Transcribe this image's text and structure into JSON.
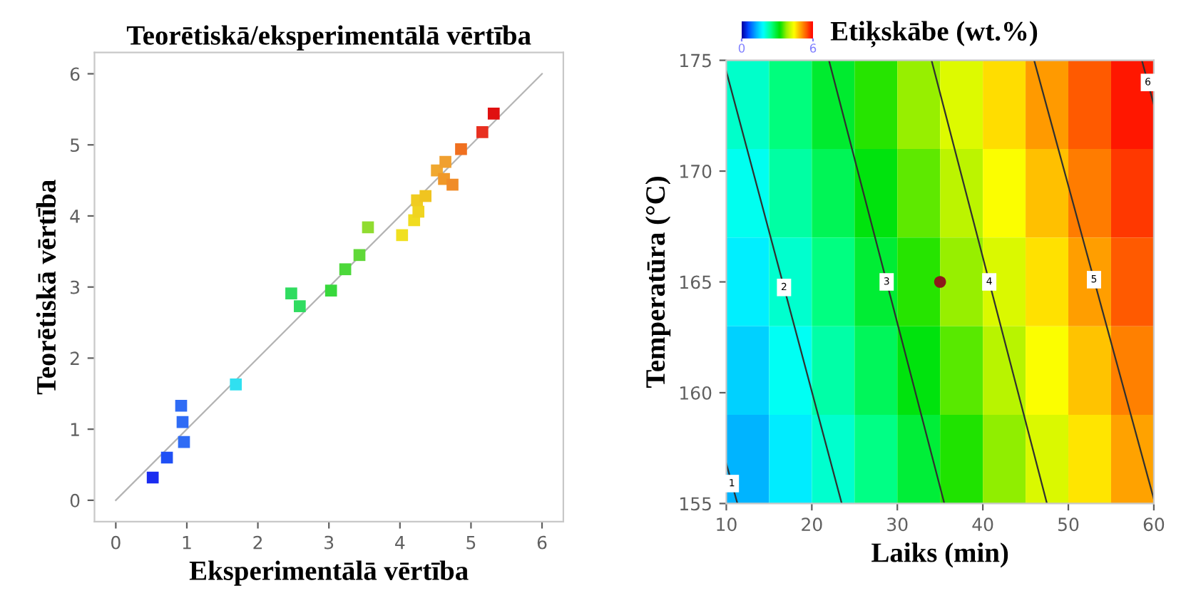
{
  "chart_data": [
    {
      "type": "scatter",
      "title": "Teorētiskā/eksperimentālā vērtība",
      "xlabel": "Eksperimentālā vērtība",
      "ylabel": "Teorētiskā vērtība",
      "xlim": [
        -0.3,
        6.3
      ],
      "ylim": [
        -0.3,
        6.3
      ],
      "xticks": [
        0,
        1,
        2,
        3,
        4,
        5,
        6
      ],
      "yticks": [
        0,
        1,
        2,
        3,
        4,
        5,
        6
      ],
      "series": [
        {
          "type": "line",
          "color": "#b4b4b4",
          "x": [
            0,
            6
          ],
          "values": [
            0,
            6
          ]
        },
        {
          "type": "scatter",
          "marker": "square",
          "x": [
            0.52,
            0.72,
            0.92,
            0.94,
            0.96,
            1.69,
            2.47,
            2.59,
            3.03,
            3.23,
            3.43,
            3.55,
            4.03,
            4.2,
            4.26,
            4.24,
            4.36,
            4.52,
            4.64,
            4.62,
            4.74,
            4.86,
            5.16,
            5.32
          ],
          "values": [
            0.32,
            0.6,
            1.33,
            1.1,
            0.82,
            1.63,
            2.91,
            2.73,
            2.95,
            3.25,
            3.45,
            3.84,
            3.73,
            3.94,
            4.06,
            4.22,
            4.28,
            4.64,
            4.76,
            4.52,
            4.44,
            4.94,
            5.18,
            5.44
          ],
          "colors": [
            "#1a2cf0",
            "#1f4ff5",
            "#2f6cf5",
            "#2f6cf5",
            "#2f6cf5",
            "#30e0f0",
            "#30dc60",
            "#30dc60",
            "#38d83c",
            "#4cd83a",
            "#60d838",
            "#90dc30",
            "#f0e020",
            "#f0dc20",
            "#f0d420",
            "#f0cc20",
            "#f0c420",
            "#f0a830",
            "#f0a030",
            "#f09828",
            "#f08c28",
            "#f07020",
            "#e83020",
            "#e01010"
          ]
        }
      ]
    },
    {
      "type": "heatmap",
      "title": "Etiķskābe (wt.%)",
      "xlabel": "Laiks (min)",
      "ylabel": "Temperatūra (°C)",
      "x": [
        12.5,
        17.5,
        22.5,
        27.5,
        32.5,
        37.5,
        42.5,
        47.5,
        52.5,
        57.5
      ],
      "y": [
        173,
        169,
        165,
        161,
        157
      ],
      "cells": [
        [
          2.1,
          2.52,
          2.93,
          3.35,
          3.77,
          4.18,
          4.6,
          5.02,
          5.43,
          5.85
        ],
        [
          1.88,
          2.3,
          2.72,
          3.13,
          3.55,
          3.97,
          4.38,
          4.8,
          5.22,
          5.63
        ],
        [
          1.67,
          2.08,
          2.5,
          2.92,
          3.33,
          3.75,
          4.17,
          4.58,
          5.0,
          5.42
        ],
        [
          1.45,
          1.87,
          2.28,
          2.7,
          3.12,
          3.53,
          3.95,
          4.37,
          4.78,
          5.2
        ],
        [
          1.23,
          1.65,
          2.07,
          2.48,
          2.9,
          3.32,
          3.73,
          4.15,
          4.57,
          4.98
        ]
      ],
      "clim": [
        0,
        6
      ],
      "cticks": [
        0,
        6
      ],
      "xlim": [
        10,
        60
      ],
      "ylim": [
        155,
        175
      ],
      "xticks": [
        10,
        20,
        30,
        40,
        50,
        60
      ],
      "yticks": [
        155,
        160,
        165,
        170,
        175
      ],
      "series": [
        {
          "type": "line",
          "name": "1",
          "color": "#303030",
          "x": [
            10,
            11.3
          ],
          "values": [
            156.8,
            155
          ]
        },
        {
          "type": "line",
          "name": "2",
          "color": "#303030",
          "x": [
            10,
            23.5
          ],
          "values": [
            174.5,
            155
          ]
        },
        {
          "type": "line",
          "name": "3",
          "color": "#303030",
          "x": [
            22,
            35.5
          ],
          "values": [
            175,
            155
          ]
        },
        {
          "type": "line",
          "name": "4",
          "color": "#303030",
          "x": [
            34,
            47.5
          ],
          "values": [
            175,
            155
          ]
        },
        {
          "type": "line",
          "name": "5",
          "color": "#303030",
          "x": [
            46,
            60
          ],
          "values": [
            175,
            155.2
          ]
        },
        {
          "type": "line",
          "name": "6",
          "color": "#303030",
          "x": [
            58.6,
            60
          ],
          "values": [
            175,
            173
          ]
        },
        {
          "type": "scatter",
          "marker": "circle",
          "color": "#8b1a1a",
          "x": [
            35
          ],
          "values": [
            165
          ]
        }
      ]
    }
  ]
}
